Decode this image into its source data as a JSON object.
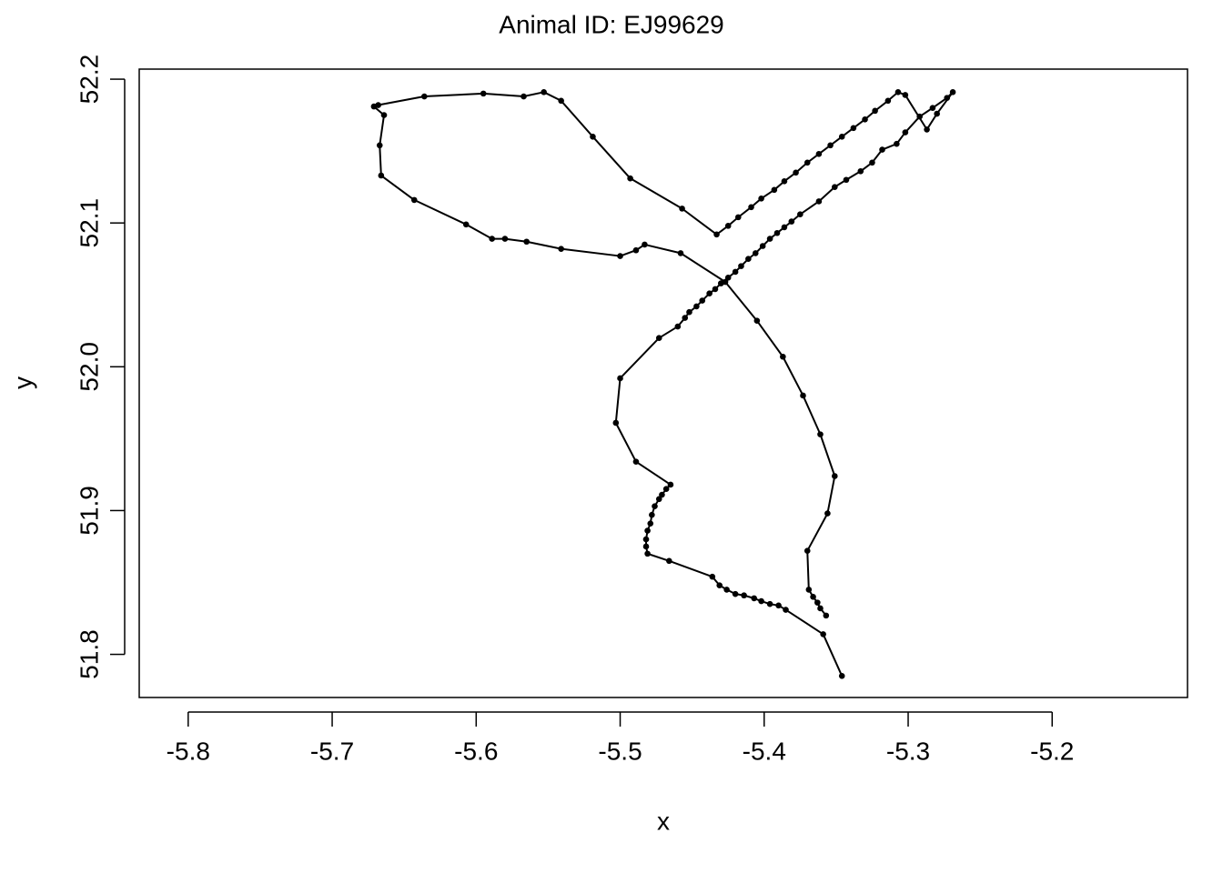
{
  "chart_data": {
    "type": "line",
    "title": "Animal ID: EJ99629",
    "x_label": "x",
    "y_label": "y",
    "color": "#000000",
    "markers": true,
    "x": [
      -5.346,
      -5.359,
      -5.385,
      -5.39,
      -5.396,
      -5.402,
      -5.407,
      -5.414,
      -5.42,
      -5.426,
      -5.431,
      -5.436,
      -5.466,
      -5.481,
      -5.482,
      -5.482,
      -5.481,
      -5.479,
      -5.478,
      -5.476,
      -5.473,
      -5.471,
      -5.468,
      -5.465,
      -5.489,
      -5.503,
      -5.5,
      -5.473,
      -5.46,
      -5.455,
      -5.452,
      -5.447,
      -5.443,
      -5.438,
      -5.434,
      -5.43,
      -5.425,
      -5.42,
      -5.416,
      -5.411,
      -5.406,
      -5.401,
      -5.396,
      -5.391,
      -5.386,
      -5.381,
      -5.375,
      -5.362,
      -5.351,
      -5.343,
      -5.333,
      -5.325,
      -5.318,
      -5.308,
      -5.302,
      -5.292,
      -5.283,
      -5.273,
      -5.269,
      -5.28,
      -5.287,
      -5.302,
      -5.307,
      -5.314,
      -5.323,
      -5.33,
      -5.338,
      -5.346,
      -5.354,
      -5.362,
      -5.37,
      -5.378,
      -5.386,
      -5.393,
      -5.402,
      -5.409,
      -5.418,
      -5.425,
      -5.433,
      -5.457,
      -5.493,
      -5.519,
      -5.541,
      -5.553,
      -5.567,
      -5.595,
      -5.636,
      -5.668,
      -5.671,
      -5.664,
      -5.667,
      -5.666,
      -5.643,
      -5.607,
      -5.589,
      -5.58,
      -5.565,
      -5.541,
      -5.5,
      -5.489,
      -5.483,
      -5.458,
      -5.427,
      -5.405,
      -5.387,
      -5.373,
      -5.361,
      -5.351,
      -5.356,
      -5.37,
      -5.369,
      -5.366,
      -5.363,
      -5.361,
      -5.357
    ],
    "values": [
      51.785,
      51.814,
      51.831,
      51.834,
      51.835,
      51.837,
      51.839,
      51.841,
      51.842,
      51.845,
      51.848,
      51.854,
      51.865,
      51.87,
      51.875,
      51.88,
      51.886,
      51.891,
      51.897,
      51.903,
      51.908,
      51.911,
      51.915,
      51.918,
      51.934,
      51.961,
      51.992,
      52.02,
      52.028,
      52.034,
      52.038,
      52.042,
      52.046,
      52.051,
      52.054,
      52.058,
      52.062,
      52.066,
      52.07,
      52.075,
      52.079,
      52.084,
      52.089,
      52.093,
      52.097,
      52.101,
      52.106,
      52.115,
      52.125,
      52.13,
      52.136,
      52.142,
      52.151,
      52.155,
      52.163,
      52.174,
      52.18,
      52.187,
      52.191,
      52.176,
      52.165,
      52.189,
      52.191,
      52.185,
      52.178,
      52.172,
      52.166,
      52.16,
      52.154,
      52.148,
      52.142,
      52.135,
      52.129,
      52.123,
      52.117,
      52.111,
      52.104,
      52.098,
      52.092,
      52.11,
      52.131,
      52.16,
      52.185,
      52.191,
      52.188,
      52.19,
      52.188,
      52.182,
      52.181,
      52.175,
      52.154,
      52.133,
      52.116,
      52.099,
      52.089,
      52.089,
      52.087,
      52.082,
      52.077,
      52.081,
      52.085,
      52.079,
      52.059,
      52.032,
      52.007,
      51.98,
      51.953,
      51.924,
      51.898,
      51.872,
      51.845,
      51.84,
      51.836,
      51.832,
      51.827
    ],
    "xlim": [
      -5.834,
      -5.106
    ],
    "ylim": [
      51.77,
      52.207
    ],
    "xticks": [
      -5.8,
      -5.7,
      -5.6,
      -5.5,
      -5.4,
      -5.3,
      -5.2
    ],
    "yticks": [
      51.8,
      51.9,
      {
        "value": 52,
        "label": "52.0"
      },
      52.1,
      52.2
    ]
  }
}
